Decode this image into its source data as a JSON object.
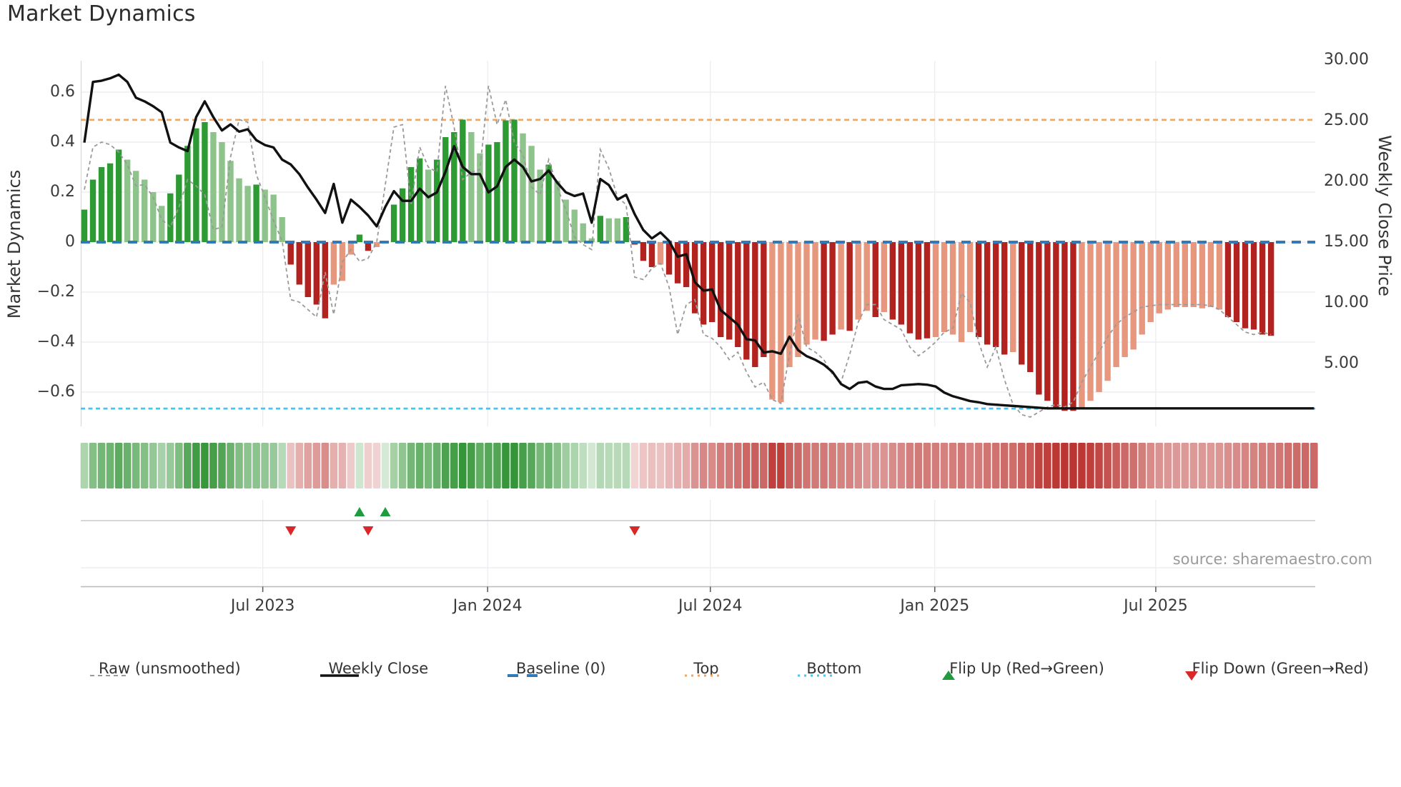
{
  "title": "Market Dynamics",
  "source": "source: sharemaestro.com",
  "axes": {
    "left_label": "Market Dynamics",
    "right_label": "Weekly Close Price",
    "left_ticks": [
      "0.6",
      "0.4",
      "0.2",
      "0",
      "−0.2",
      "−0.4",
      "−0.6"
    ],
    "left_tick_values": [
      0.6,
      0.4,
      0.2,
      0,
      -0.2,
      -0.4,
      -0.6
    ],
    "right_ticks": [
      "30.00",
      "25.00",
      "20.00",
      "15.00",
      "10.00",
      "5.00"
    ],
    "right_tick_values": [
      30,
      25,
      20,
      15,
      10,
      5
    ],
    "x_ticks": [
      {
        "label": "Jul 2023",
        "week": 20.75
      },
      {
        "label": "Jan 2024",
        "week": 46.9
      },
      {
        "label": "Jul 2024",
        "week": 72.8
      },
      {
        "label": "Jan 2025",
        "week": 98.9
      },
      {
        "label": "Jul 2025",
        "week": 124.6
      }
    ]
  },
  "legend": [
    {
      "label": "Raw (unsmoothed)",
      "swatch": "line-dash-gray"
    },
    {
      "label": "Weekly Close",
      "swatch": "line-solid-black"
    },
    {
      "label": "Baseline (0)",
      "swatch": "line-longdash-blue"
    },
    {
      "label": "Top",
      "swatch": "line-dot-orange"
    },
    {
      "label": "Bottom",
      "swatch": "line-dot-cyan"
    },
    {
      "label": "Flip Up (Red→Green)",
      "swatch": "triangle-up-green"
    },
    {
      "label": "Flip Down (Green→Red)",
      "swatch": "triangle-down-red"
    }
  ],
  "colors": {
    "bar_green_strong": "#2e9a33",
    "bar_green_weak": "#8ec48c",
    "bar_red_strong": "#b2231f",
    "bar_red_weak": "#e6977d",
    "baseline": "#3379b5",
    "top_line": "#f3a55f",
    "bottom_line": "#3fc9ef",
    "raw_line": "#9a9a9a",
    "price_line": "#111111",
    "flip_up": "#1e9c3f",
    "flip_down": "#d8282a",
    "grid": "#ebebf0",
    "grid_dark": "#c9c9cf",
    "spine": "#b8b8bf",
    "text": "#333333"
  },
  "chart_data": {
    "type": "bar",
    "subtype": "weekly oscillator bars + dual-axis price line",
    "x_unit": "week",
    "x_span": "Feb 2023 – Nov 2025",
    "left_axis_range": [
      -0.737,
      0.726
    ],
    "right_axis_range": [
      -1.0,
      30.0
    ],
    "price_mapping": {
      "price_at_baseline": 15,
      "price_per_left_unit": 20.6
    },
    "overlays": {
      "baseline": 0.0,
      "top": 0.489,
      "bottom": -0.666
    },
    "grid": true,
    "legend_position": "bottom",
    "series": {
      "oscillator": [
        0.13,
        0.25,
        0.3,
        0.315,
        0.37,
        0.33,
        0.285,
        0.25,
        0.2,
        0.145,
        0.195,
        0.27,
        0.385,
        0.455,
        0.48,
        0.44,
        0.4,
        0.325,
        0.255,
        0.225,
        0.23,
        0.21,
        0.19,
        0.1,
        -0.09,
        -0.17,
        -0.22,
        -0.25,
        -0.305,
        -0.17,
        -0.155,
        -0.05,
        0.03,
        -0.035,
        -0.02,
        0.005,
        0.15,
        0.215,
        0.3,
        0.335,
        0.29,
        0.33,
        0.42,
        0.44,
        0.49,
        0.44,
        0.355,
        0.39,
        0.4,
        0.487,
        0.49,
        0.435,
        0.385,
        0.29,
        0.31,
        0.245,
        0.17,
        0.13,
        0.075,
        0.015,
        0.105,
        0.095,
        0.095,
        0.1,
        -0.01,
        -0.075,
        -0.1,
        -0.09,
        -0.13,
        -0.165,
        -0.18,
        -0.285,
        -0.33,
        -0.32,
        -0.38,
        -0.39,
        -0.42,
        -0.47,
        -0.5,
        -0.46,
        -0.63,
        -0.64,
        -0.5,
        -0.46,
        -0.41,
        -0.39,
        -0.395,
        -0.37,
        -0.35,
        -0.355,
        -0.31,
        -0.275,
        -0.3,
        -0.28,
        -0.31,
        -0.33,
        -0.365,
        -0.39,
        -0.385,
        -0.38,
        -0.36,
        -0.37,
        -0.4,
        -0.36,
        -0.38,
        -0.41,
        -0.42,
        -0.45,
        -0.44,
        -0.49,
        -0.52,
        -0.61,
        -0.635,
        -0.663,
        -0.675,
        -0.675,
        -0.663,
        -0.635,
        -0.6,
        -0.555,
        -0.5,
        -0.46,
        -0.43,
        -0.37,
        -0.32,
        -0.285,
        -0.27,
        -0.26,
        -0.26,
        -0.26,
        -0.265,
        -0.26,
        -0.27,
        -0.3,
        -0.32,
        -0.345,
        -0.35,
        -0.37,
        -0.375
      ],
      "strong": [
        1,
        1,
        1,
        1,
        1,
        0,
        0,
        0,
        0,
        0,
        1,
        1,
        1,
        1,
        1,
        0,
        0,
        0,
        0,
        0,
        1,
        0,
        0,
        0,
        1,
        1,
        1,
        1,
        1,
        0,
        0,
        0,
        1,
        1,
        0,
        1,
        1,
        1,
        1,
        1,
        0,
        1,
        1,
        1,
        1,
        0,
        0,
        1,
        1,
        1,
        1,
        0,
        0,
        0,
        1,
        0,
        0,
        0,
        0,
        0,
        1,
        0,
        0,
        1,
        1,
        1,
        1,
        0,
        1,
        1,
        1,
        1,
        1,
        1,
        1,
        1,
        1,
        1,
        1,
        1,
        0,
        0,
        0,
        0,
        0,
        0,
        1,
        1,
        0,
        1,
        0,
        0,
        1,
        0,
        1,
        1,
        1,
        1,
        1,
        0,
        0,
        0,
        0,
        0,
        1,
        1,
        1,
        1,
        0,
        1,
        1,
        1,
        1,
        1,
        1,
        1,
        0,
        0,
        0,
        0,
        0,
        0,
        0,
        0,
        0,
        0,
        0,
        0,
        0,
        0,
        0,
        0,
        0,
        1,
        1,
        1,
        1,
        1,
        1
      ],
      "weekly_close_price": [
        23.2,
        28.2,
        28.3,
        28.5,
        28.8,
        28.2,
        26.9,
        26.6,
        26.2,
        25.7,
        23.2,
        22.8,
        22.5,
        25.3,
        26.6,
        25.3,
        24.2,
        24.7,
        24.1,
        24.3,
        23.4,
        23.0,
        22.8,
        21.8,
        21.4,
        20.6,
        19.5,
        18.5,
        17.4,
        19.8,
        16.6,
        18.5,
        17.9,
        17.2,
        16.3,
        17.9,
        19.2,
        18.4,
        18.4,
        19.4,
        18.7,
        19.1,
        20.8,
        22.9,
        21.2,
        20.6,
        20.6,
        19.1,
        19.6,
        21.2,
        21.8,
        21.2,
        20.0,
        20.2,
        20.9,
        19.9,
        19.1,
        18.8,
        19.0,
        16.6,
        20.2,
        19.7,
        18.5,
        18.9,
        17.3,
        16.0,
        15.3,
        15.8,
        15.1,
        13.8,
        14.0,
        11.7,
        11.0,
        11.1,
        9.4,
        8.8,
        8.2,
        7.0,
        6.9,
        5.9,
        6.0,
        5.8,
        7.2,
        6.1,
        5.6,
        5.3,
        4.9,
        4.3,
        3.3,
        2.9,
        3.4,
        3.5,
        3.1,
        2.9,
        2.9,
        3.2,
        3.25,
        3.3,
        3.25,
        3.1,
        2.6,
        2.3,
        2.1,
        1.9,
        1.8,
        1.65,
        1.6,
        1.55,
        1.5,
        1.45,
        1.4,
        1.35,
        1.3,
        1.3,
        1.3,
        1.3,
        1.3,
        1.3,
        1.3,
        1.3,
        1.3,
        1.3,
        1.3,
        1.3,
        1.3,
        1.3,
        1.3,
        1.3,
        1.3,
        1.3,
        1.3,
        1.3,
        1.3,
        1.3,
        1.3,
        1.3,
        1.3,
        1.3,
        1.3,
        1.3,
        1.3,
        1.3,
        1.3,
        1.3
      ],
      "raw_unsmoothed": [
        0.21,
        0.38,
        0.4,
        0.39,
        0.36,
        0.31,
        0.225,
        0.23,
        0.18,
        0.09,
        0.06,
        0.14,
        0.25,
        0.225,
        0.19,
        0.05,
        0.06,
        0.34,
        0.49,
        0.48,
        0.27,
        0.18,
        0.085,
        0.005,
        -0.23,
        -0.24,
        -0.27,
        -0.3,
        -0.12,
        -0.29,
        -0.08,
        -0.03,
        -0.077,
        -0.065,
        0.0,
        0.23,
        0.46,
        0.47,
        0.15,
        0.38,
        0.3,
        0.28,
        0.625,
        0.46,
        0.25,
        0.28,
        0.29,
        0.625,
        0.47,
        0.57,
        0.4,
        0.35,
        0.22,
        0.19,
        0.33,
        0.22,
        0.13,
        0.02,
        -0.01,
        -0.03,
        0.37,
        0.295,
        0.18,
        0.15,
        -0.14,
        -0.15,
        -0.105,
        -0.085,
        -0.18,
        -0.37,
        -0.25,
        -0.23,
        -0.37,
        -0.385,
        -0.42,
        -0.47,
        -0.44,
        -0.52,
        -0.58,
        -0.56,
        -0.63,
        -0.645,
        -0.45,
        -0.29,
        -0.42,
        -0.44,
        -0.47,
        -0.53,
        -0.56,
        -0.45,
        -0.32,
        -0.25,
        -0.25,
        -0.31,
        -0.33,
        -0.35,
        -0.42,
        -0.455,
        -0.43,
        -0.4,
        -0.36,
        -0.345,
        -0.205,
        -0.24,
        -0.4,
        -0.5,
        -0.42,
        -0.55,
        -0.65,
        -0.69,
        -0.7,
        -0.68,
        -0.66,
        -0.65,
        -0.66,
        -0.64,
        -0.56,
        -0.5,
        -0.44,
        -0.38,
        -0.33,
        -0.3,
        -0.28,
        -0.26,
        -0.255,
        -0.25,
        -0.25,
        -0.25,
        -0.25,
        -0.25,
        -0.25,
        -0.255,
        -0.27,
        -0.3,
        -0.33,
        -0.36,
        -0.37,
        -0.36,
        -0.37
      ],
      "strip_extension": [
        -0.4,
        -0.43,
        -0.45,
        -0.46,
        -0.46
      ]
    },
    "markers": {
      "flip_up_weeks": [
        32,
        35
      ],
      "flip_down_weeks": [
        24,
        33,
        64
      ]
    }
  }
}
